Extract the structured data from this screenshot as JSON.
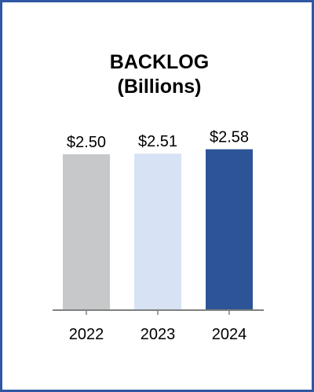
{
  "chart_data": {
    "type": "bar",
    "title": "BACKLOG",
    "subtitle": "(Billions)",
    "categories": [
      "2022",
      "2023",
      "2024"
    ],
    "values": [
      2.5,
      2.51,
      2.58
    ],
    "data_labels": [
      "$2.50",
      "$2.51",
      "$2.58"
    ],
    "colors": [
      "#c6c8ca",
      "#d7e3f4",
      "#2d5497"
    ],
    "xlabel": "",
    "ylabel": "",
    "ylim": [
      0,
      3
    ],
    "grid": false,
    "legend": "none"
  },
  "colors": {
    "border": "#2f57a3",
    "axis": "#808080"
  }
}
